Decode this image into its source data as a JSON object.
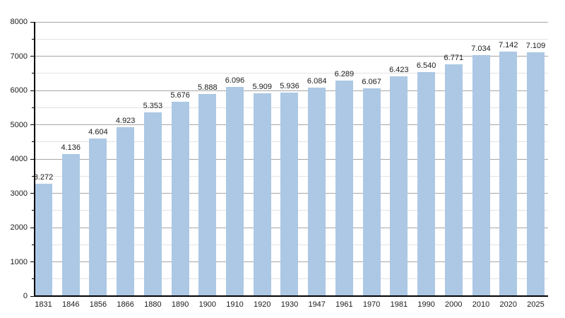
{
  "chart_data": {
    "type": "bar",
    "title": "",
    "xlabel": "",
    "ylabel": "",
    "categories": [
      "1831",
      "1846",
      "1856",
      "1866",
      "1880",
      "1890",
      "1900",
      "1910",
      "1920",
      "1930",
      "1947",
      "1961",
      "1970",
      "1981",
      "1990",
      "2000",
      "2010",
      "2020",
      "2025"
    ],
    "values": [
      3272,
      4136,
      4604,
      4923,
      5353,
      5676,
      5888,
      6096,
      5909,
      5936,
      6084,
      6289,
      6067,
      6423,
      6540,
      6771,
      7034,
      7142,
      7109
    ],
    "value_labels": [
      "3.272",
      "4.136",
      "4.604",
      "4.923",
      "5.353",
      "5.676",
      "5.888",
      "6.096",
      "5.909",
      "5.936",
      "6.084",
      "6.289",
      "6.067",
      "6.423",
      "6.540",
      "6.771",
      "7.034",
      "7.142",
      "7.109"
    ],
    "ylim": [
      0,
      8000
    ],
    "y_major_step": 1000,
    "y_minor_step": 500,
    "y_tick_labels": [
      "0",
      "1000",
      "2000",
      "3000",
      "4000",
      "5000",
      "6000",
      "7000",
      "8000"
    ],
    "grid": true,
    "legend_position": "none",
    "colors": {
      "bar_fill": "#acc8e4",
      "major_grid": "#a6a6a6",
      "minor_grid": "#e3e3e3",
      "axis": "#000000",
      "text": "#1a1a1a",
      "background": "#ffffff"
    }
  }
}
